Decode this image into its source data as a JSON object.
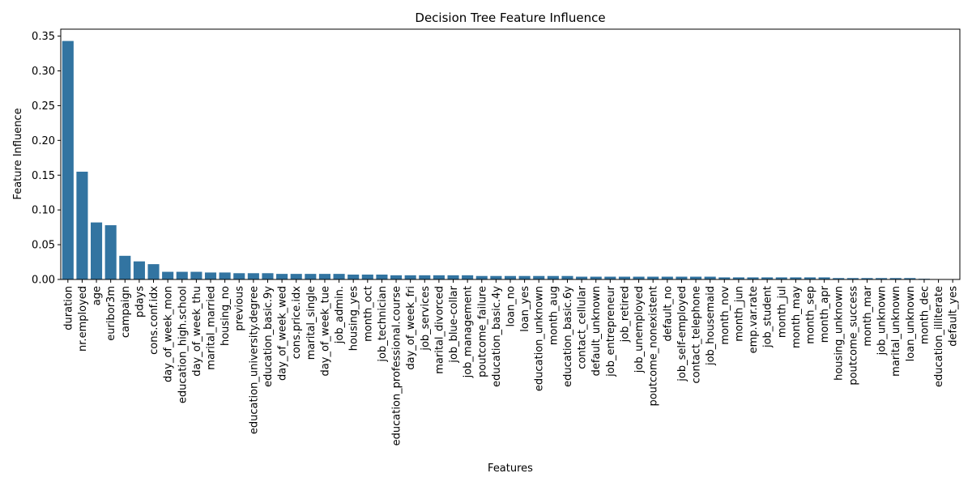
{
  "chart_data": {
    "type": "bar",
    "title": "Decision Tree Feature Influence",
    "xlabel": "Features",
    "ylabel": "Feature Influence",
    "ylim": [
      0,
      0.36
    ],
    "yticks": [
      "0.00",
      "0.05",
      "0.10",
      "0.15",
      "0.20",
      "0.25",
      "0.30",
      "0.35"
    ],
    "color": "#3274a1",
    "grid": false,
    "categories": [
      "duration",
      "nr.employed",
      "age",
      "euribor3m",
      "campaign",
      "pdays",
      "cons.conf.idx",
      "day_of_week_mon",
      "education_high.school",
      "day_of_week_thu",
      "marital_married",
      "housing_no",
      "previous",
      "education_university.degree",
      "education_basic.9y",
      "day_of_week_wed",
      "cons.price.idx",
      "marital_single",
      "day_of_week_tue",
      "job_admin.",
      "housing_yes",
      "month_oct",
      "job_technician",
      "education_professional.course",
      "day_of_week_fri",
      "job_services",
      "marital_divorced",
      "job_blue-collar",
      "job_management",
      "poutcome_failure",
      "education_basic.4y",
      "loan_no",
      "loan_yes",
      "education_unknown",
      "month_aug",
      "education_basic.6y",
      "contact_cellular",
      "default_unknown",
      "job_entrepreneur",
      "job_retired",
      "job_unemployed",
      "poutcome_nonexistent",
      "default_no",
      "job_self-employed",
      "contact_telephone",
      "job_housemaid",
      "month_nov",
      "month_jun",
      "emp.var.rate",
      "job_student",
      "month_jul",
      "month_may",
      "month_sep",
      "month_apr",
      "housing_unknown",
      "poutcome_success",
      "month_mar",
      "job_unknown",
      "marital_unknown",
      "loan_unknown",
      "month_dec",
      "education_illiterate",
      "default_yes"
    ],
    "values": [
      0.343,
      0.155,
      0.082,
      0.078,
      0.034,
      0.026,
      0.022,
      0.011,
      0.011,
      0.011,
      0.01,
      0.01,
      0.009,
      0.009,
      0.009,
      0.008,
      0.008,
      0.008,
      0.008,
      0.008,
      0.007,
      0.007,
      0.007,
      0.006,
      0.006,
      0.006,
      0.006,
      0.006,
      0.006,
      0.005,
      0.005,
      0.005,
      0.005,
      0.005,
      0.005,
      0.005,
      0.004,
      0.004,
      0.004,
      0.004,
      0.004,
      0.004,
      0.004,
      0.004,
      0.004,
      0.004,
      0.003,
      0.003,
      0.003,
      0.003,
      0.003,
      0.003,
      0.003,
      0.003,
      0.002,
      0.002,
      0.002,
      0.002,
      0.002,
      0.002,
      0.001,
      0.0005,
      0.0002
    ]
  }
}
